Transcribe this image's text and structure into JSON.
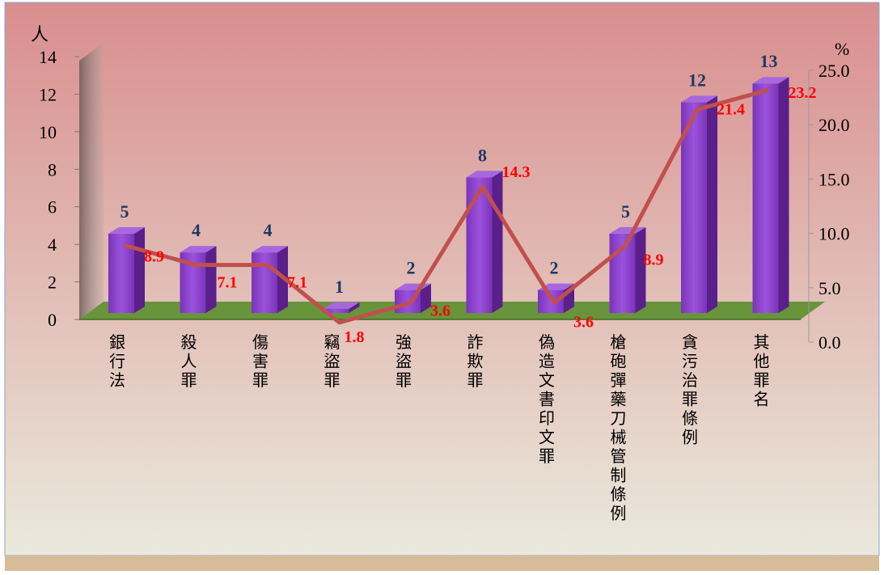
{
  "chart_data": {
    "type": "bar",
    "categories": [
      "銀行法",
      "殺人罪",
      "傷害罪",
      "竊盜罪",
      "強盜罪",
      "詐欺罪",
      "偽造文書印文罪",
      "槍砲彈藥刀械管制條例",
      "貪污治罪條例",
      "其他罪名"
    ],
    "series": [
      {
        "values": [
          5,
          4,
          4,
          1,
          2,
          8,
          2,
          5,
          12,
          13
        ]
      },
      {
        "values": [
          8.9,
          7.1,
          7.1,
          1.8,
          3.6,
          14.3,
          3.6,
          8.9,
          21.4,
          23.2
        ]
      }
    ],
    "y_left": {
      "unit": "人",
      "ticks": [
        "0",
        "2",
        "4",
        "6",
        "8",
        "10",
        "12",
        "14"
      ],
      "ylim": [
        0,
        14
      ]
    },
    "y_right": {
      "unit": "%",
      "ticks": [
        "0.0",
        "5.0",
        "10.0",
        "15.0",
        "20.0",
        "25.0"
      ],
      "ylim": [
        0,
        25
      ]
    },
    "grid": false,
    "legend": "none"
  },
  "colors": {
    "bar_front": "#8b3fc8",
    "bar_side": "#5a1f8a",
    "bar_top": "#a768dd",
    "line": "#c0504d",
    "bar_label": "#1f3864",
    "line_label": "#ff0000",
    "floor": "#5a8f2e",
    "bg_top": "#d98e8e",
    "bg_bottom": "#eae9dc",
    "footer": "#d7bc9a"
  }
}
